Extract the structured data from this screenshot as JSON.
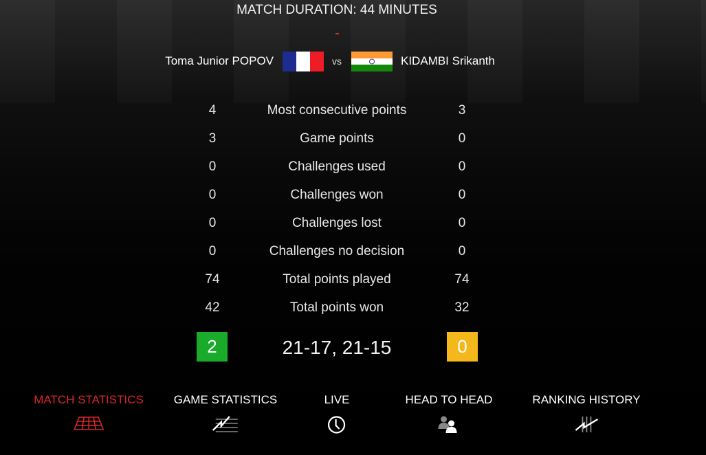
{
  "header": {
    "title": "MATCH DURATION: 44 MINUTES"
  },
  "players": {
    "left": {
      "name": "Toma Junior POPOV",
      "flag": "france-flag"
    },
    "vs": "vs",
    "right": {
      "name": "KIDAMBI Srikanth",
      "flag": "india-flag"
    }
  },
  "stats": [
    {
      "left": "4",
      "label": "Most consecutive points",
      "right": "3"
    },
    {
      "left": "3",
      "label": "Game points",
      "right": "0"
    },
    {
      "left": "0",
      "label": "Challenges used",
      "right": "0"
    },
    {
      "left": "0",
      "label": "Challenges won",
      "right": "0"
    },
    {
      "left": "0",
      "label": "Challenges lost",
      "right": "0"
    },
    {
      "left": "0",
      "label": "Challenges no decision",
      "right": "0"
    },
    {
      "left": "74",
      "label": "Total points played",
      "right": "74"
    },
    {
      "left": "42",
      "label": "Total points won",
      "right": "32"
    }
  ],
  "result": {
    "left_games": "2",
    "score": "21-17, 21-15",
    "right_games": "0",
    "left_color": "#1aab2a",
    "right_color": "#f5b81c"
  },
  "tabs": [
    {
      "label": "MATCH STATISTICS",
      "icon": "court-icon",
      "active": true
    },
    {
      "label": "GAME STATISTICS",
      "icon": "game-stats-icon"
    },
    {
      "label": "LIVE",
      "icon": "clock-icon"
    },
    {
      "label": "HEAD TO HEAD",
      "icon": "head-to-head-icon"
    },
    {
      "label": "RANKING HISTORY",
      "icon": "ranking-history-icon"
    }
  ],
  "colors": {
    "accent": "#d8262b"
  }
}
